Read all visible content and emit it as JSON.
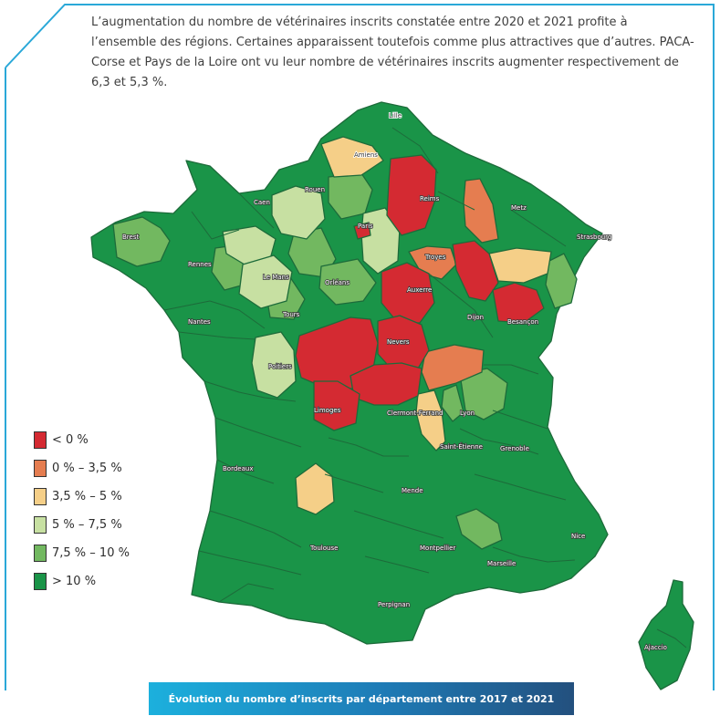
{
  "intro_text": "L’augmentation du nombre de vétérinaires inscrits constatée entre 2020 et 2021 profite à l’ensemble des régions. Certaines apparaissent toutefois comme plus attractives que d’autres. PACA-Corse et Pays de la Loire ont vu leur nombre de vétérinaires inscrits augmenter respectivement de 6,3 et 5,3 %.",
  "caption": "Évolution du nombre d’inscrits par département entre 2017 et 2021",
  "colors": {
    "frame": "#2aa8d8",
    "border": "#1d6b3a",
    "lt0": "#d42a32",
    "c0_35": "#e57d50",
    "c35_5": "#f5cf88",
    "c5_75": "#c7e0a2",
    "c75_10": "#72b860",
    "gt10": "#1a9448"
  },
  "legend": [
    {
      "label": "< 0 %",
      "color": "#d42a32"
    },
    {
      "label": "0 % – 3,5 %",
      "color": "#e57d50"
    },
    {
      "label": "3,5 % – 5 %",
      "color": "#f5cf88"
    },
    {
      "label": "5 % – 7,5 %",
      "color": "#c7e0a2"
    },
    {
      "label": "7,5 % – 10 %",
      "color": "#72b860"
    },
    {
      "label": "> 10 %",
      "color": "#1a9448"
    }
  ],
  "cities": {
    "lille": "Lille",
    "amiens": "Amiens",
    "rouen": "Rouen",
    "caen": "Caen",
    "paris": "Paris",
    "reims": "Reims",
    "metz": "Metz",
    "strasbourg": "Strasbourg",
    "brest": "Brest",
    "rennes": "Rennes",
    "le_mans": "Le Mans",
    "orleans": "Orléans",
    "troyes": "Troyes",
    "auxerre": "Auxerre",
    "dijon": "Dijon",
    "besancon": "Besançon",
    "nantes": "Nantes",
    "tours": "Tours",
    "nevers": "Nevers",
    "poitiers": "Poitiers",
    "limoges": "Limoges",
    "clermont": "Clermont-Ferrand",
    "lyon": "Lyon",
    "saint_etienne": "Saint-Étienne",
    "grenoble": "Grenoble",
    "bordeaux": "Bordeaux",
    "mende": "Mende",
    "nice": "Nice",
    "toulouse": "Toulouse",
    "montpellier": "Montpellier",
    "marseille": "Marseille",
    "perpignan": "Perpignan",
    "ajaccio": "Ajaccio"
  }
}
